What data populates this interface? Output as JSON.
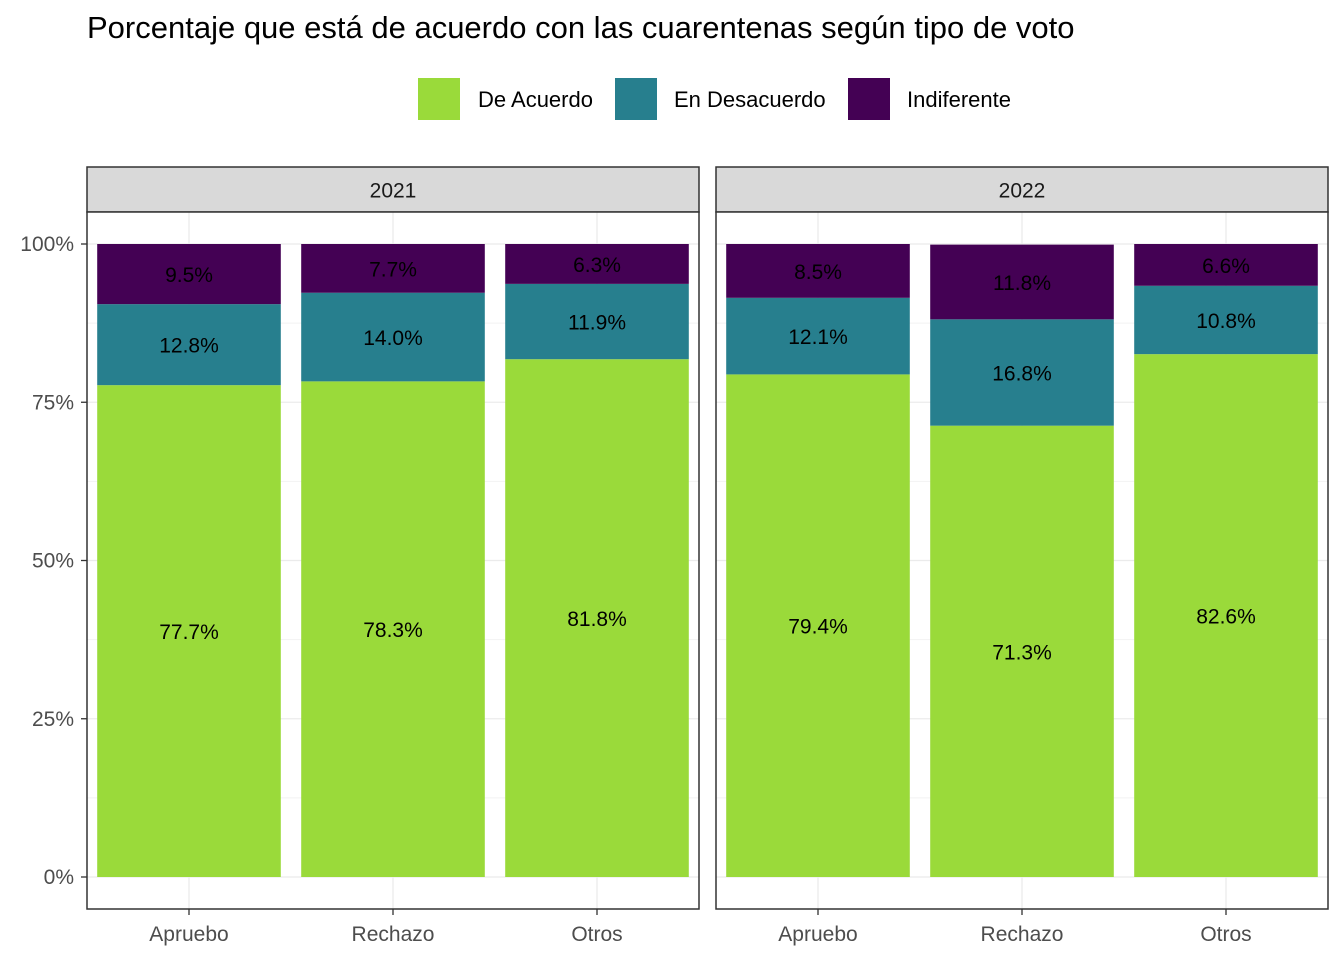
{
  "chart_data": {
    "type": "bar",
    "stacked": true,
    "title": "Porcentaje que está de acuerdo con las cuarentenas según tipo de voto",
    "xlabel": "",
    "ylabel": "",
    "ylim": [
      0,
      100
    ],
    "yticks": [
      "0%",
      "25%",
      "50%",
      "75%",
      "100%"
    ],
    "ytick_values": [
      0,
      25,
      50,
      75,
      100
    ],
    "grid": true,
    "legend_position": "top",
    "categories": [
      "Apruebo",
      "Rechazo",
      "Otros"
    ],
    "legend": [
      {
        "name": "De Acuerdo",
        "color": "#9ADA3A"
      },
      {
        "name": "En Desacuerdo",
        "color": "#277F8E"
      },
      {
        "name": "Indiferente",
        "color": "#440154"
      }
    ],
    "facets": [
      {
        "label": "2021",
        "series": [
          {
            "name": "De Acuerdo",
            "values": [
              77.7,
              78.3,
              81.8
            ],
            "labels": [
              "77.7%",
              "78.3%",
              "81.8%"
            ]
          },
          {
            "name": "En Desacuerdo",
            "values": [
              12.8,
              14.0,
              11.9
            ],
            "labels": [
              "12.8%",
              "14.0%",
              "11.9%"
            ]
          },
          {
            "name": "Indiferente",
            "values": [
              9.5,
              7.7,
              6.3
            ],
            "labels": [
              "9.5%",
              "7.7%",
              "6.3%"
            ]
          }
        ]
      },
      {
        "label": "2022",
        "series": [
          {
            "name": "De Acuerdo",
            "values": [
              79.4,
              71.3,
              82.6
            ],
            "labels": [
              "79.4%",
              "71.3%",
              "82.6%"
            ]
          },
          {
            "name": "En Desacuerdo",
            "values": [
              12.1,
              16.8,
              10.8
            ],
            "labels": [
              "12.1%",
              "16.8%",
              "10.8%"
            ]
          },
          {
            "name": "Indiferente",
            "values": [
              8.5,
              11.8,
              6.6
            ],
            "labels": [
              "8.5%",
              "11.8%",
              "6.6%"
            ]
          }
        ]
      }
    ]
  }
}
